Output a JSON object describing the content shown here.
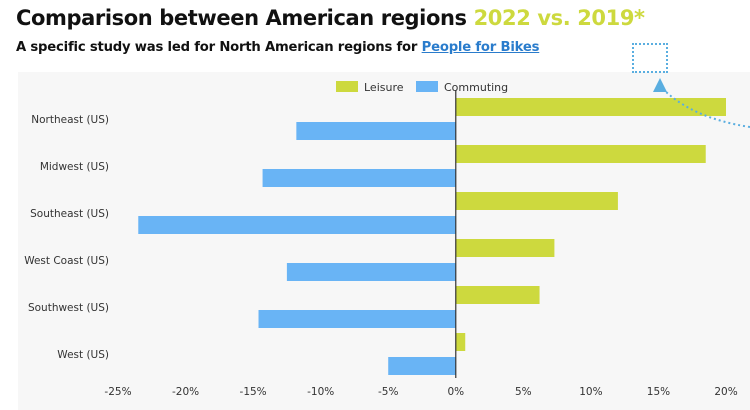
{
  "header": {
    "title_main": "Comparison between American regions",
    "title_highlight": "2022 vs. 2019*",
    "subtitle_text": "A specific study was led for North American regions for",
    "subtitle_link": "People for Bikes"
  },
  "colors": {
    "leisure": "#cdd93e",
    "commuting": "#69b4f5",
    "highlight": "#cdd93e",
    "link": "#2a7ccc",
    "callout": "#5aaee0"
  },
  "chart_data": {
    "type": "bar",
    "orientation": "horizontal",
    "categories": [
      "Northeast (US)",
      "Midwest (US)",
      "Southeast (US)",
      "West Coast (US)",
      "Southwest (US)",
      "West (US)"
    ],
    "series": [
      {
        "name": "Leisure",
        "values": [
          20,
          18.5,
          12,
          7.3,
          6.2,
          0.7
        ]
      },
      {
        "name": "Commuting",
        "values": [
          -11.8,
          -14.3,
          -23.5,
          -12.5,
          -14.6,
          -5
        ]
      }
    ],
    "xlim": [
      -25,
      20
    ],
    "xticks": [
      -25,
      -20,
      -15,
      -10,
      -5,
      0,
      5,
      10,
      15,
      20
    ],
    "xtick_labels": [
      "-25%",
      "-20%",
      "-15%",
      "-10%",
      "-5%",
      "0%",
      "5%",
      "10%",
      "15%",
      "20%"
    ],
    "legend_position": "top-center",
    "grid": false
  }
}
